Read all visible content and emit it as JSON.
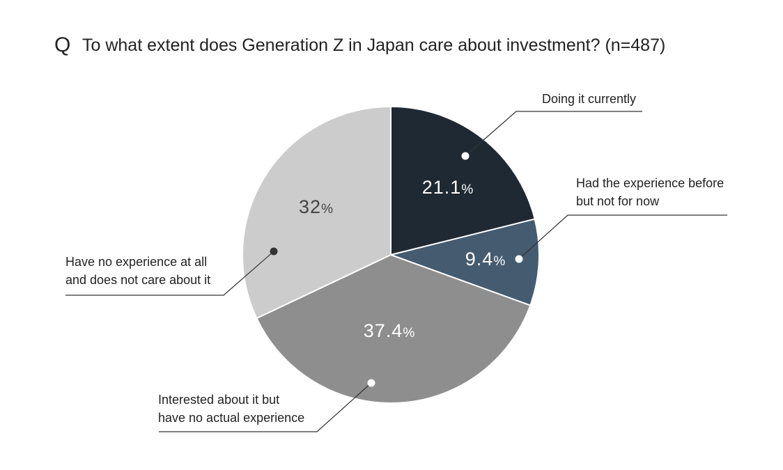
{
  "title": {
    "q_mark": "Q",
    "text": "To what extent does Generation Z in Japan care about investment? (n=487)"
  },
  "chart_data": {
    "type": "pie",
    "title": "To what extent does Generation Z in Japan care about investment? (n=487)",
    "unit": "%",
    "start_angle_deg": 0,
    "direction": "clockwise",
    "legend": "none",
    "slices": [
      {
        "label_lines": [
          "Doing it currently"
        ],
        "value": 21.1,
        "display": "21.1",
        "color": "#1f2933",
        "text_color": "#ffffff"
      },
      {
        "label_lines": [
          "Had the experience before",
          " but not for now"
        ],
        "value": 9.4,
        "display": "9.4",
        "color": "#445b70",
        "text_color": "#ffffff"
      },
      {
        "label_lines": [
          "Interested about it but",
          " have no actual experience"
        ],
        "value": 37.4,
        "display": "37.4",
        "color": "#8e8e8e",
        "text_color": "#ffffff"
      },
      {
        "label_lines": [
          "Have no experience at all",
          "and does not care about it"
        ],
        "value": 32,
        "display": "32",
        "color": "#cccccc",
        "text_color": "#444444"
      }
    ]
  }
}
